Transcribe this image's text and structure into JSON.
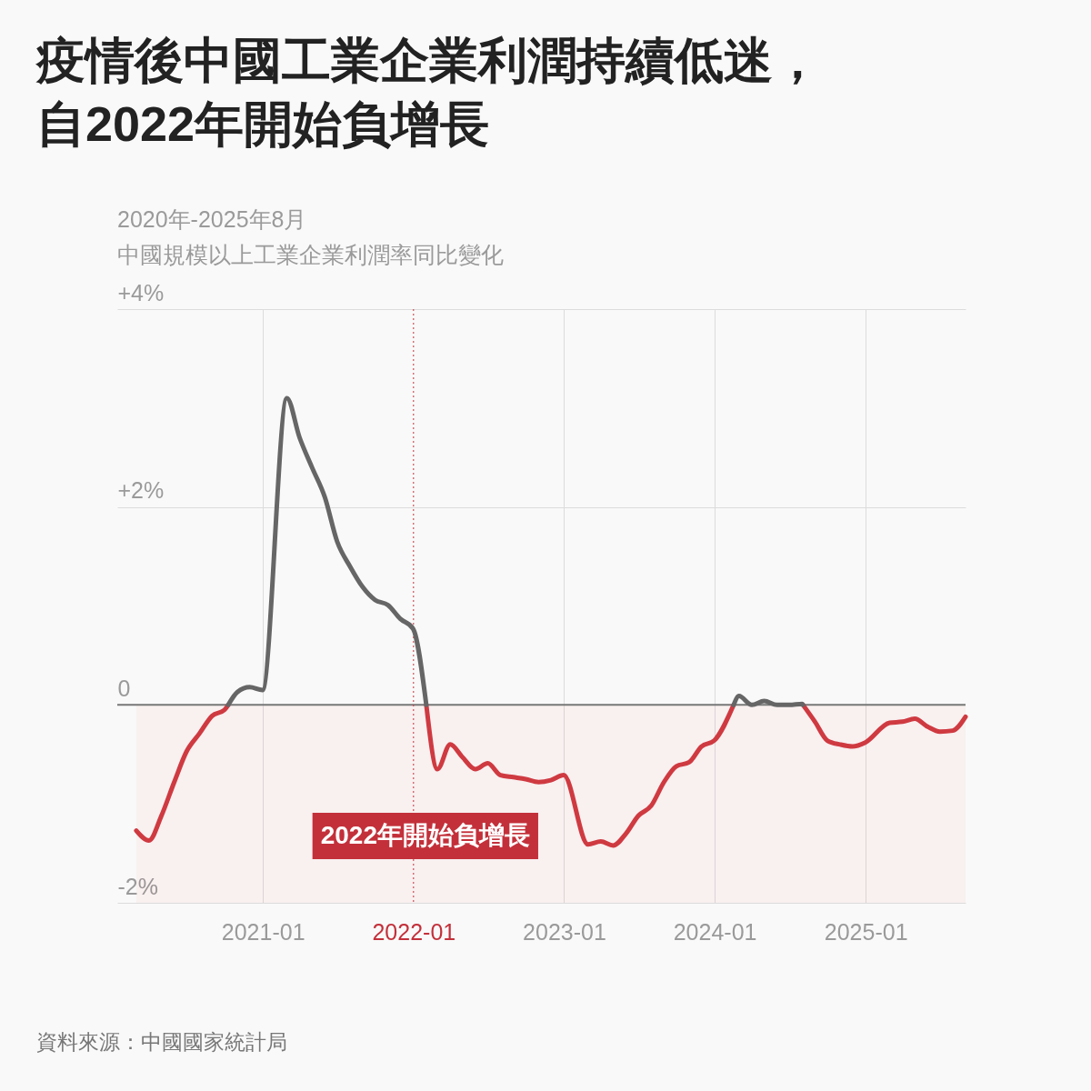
{
  "chart_data": {
    "type": "line",
    "title": "疫情後中國工業企業利潤持續低迷，自2022年開始負增長",
    "subtitle": "2020年-2025年8月",
    "ylabel": "中國規模以上工業企業利潤率同比變化",
    "annotations": [
      "資料來源：中國國家統計局"
    ],
    "x": [
      "2020-02-29",
      "2020-03-31",
      "2020-04-30",
      "2020-05-31",
      "2020-06-30",
      "2020-07-31",
      "2020-08-31",
      "2020-09-30",
      "2020-10-09",
      "2020-10-31",
      "2020-11-30",
      "2020-12-31",
      "2021-02-28",
      "2021-03-31",
      "2021-04-30",
      "2021-05-31",
      "2021-06-30",
      "2021-07-31",
      "2021-08-31",
      "2021-09-30",
      "2021-10-31",
      "2021-11-30",
      "2021-12-31",
      "2022-02-01",
      "2022-02-28",
      "2022-03-31",
      "2022-04-30",
      "2022-05-31",
      "2022-06-30",
      "2022-07-31",
      "2022-08-31",
      "2022-09-30",
      "2022-10-31",
      "2022-11-30",
      "2022-12-31",
      "2023-02-28",
      "2023-03-31",
      "2023-04-30",
      "2023-05-31",
      "2023-06-30",
      "2023-07-31",
      "2023-08-31",
      "2023-09-30",
      "2023-10-31",
      "2023-11-30",
      "2023-12-31",
      "2024-02-16",
      "2024-02-29",
      "2024-03-31",
      "2024-04-30",
      "2024-05-31",
      "2024-06-30",
      "2024-07-31",
      "2024-08-02",
      "2024-08-31",
      "2024-09-30",
      "2024-10-31",
      "2024-11-30",
      "2024-12-31",
      "2025-02-28",
      "2025-03-31",
      "2025-04-30",
      "2025-05-31",
      "2025-06-30",
      "2025-07-31",
      "2025-08-31"
    ],
    "series": [
      {
        "color": "#cf3a41",
        "values": [
          -1.27,
          -1.37,
          -1.12,
          -0.78,
          -0.47,
          -0.29,
          -0.11,
          -0.05,
          0,
          null,
          null,
          null,
          null,
          null,
          null,
          null,
          null,
          null,
          null,
          null,
          null,
          null,
          null,
          0,
          -0.65,
          -0.4,
          -0.53,
          -0.65,
          -0.59,
          -0.71,
          -0.73,
          -0.75,
          -0.78,
          -0.76,
          -0.71,
          -1.41,
          -1.38,
          -1.42,
          -1.3,
          -1.12,
          -1.02,
          -0.78,
          -0.62,
          -0.58,
          -0.42,
          -0.36,
          0,
          null,
          null,
          null,
          null,
          null,
          null,
          0,
          -0.17,
          -0.36,
          -0.4,
          -0.42,
          -0.38,
          -0.18,
          -0.17,
          -0.14,
          -0.22,
          -0.27,
          -0.26,
          -0.12
        ]
      },
      {
        "color": "#666666",
        "values": [
          null,
          null,
          null,
          null,
          null,
          null,
          null,
          null,
          0,
          0.13,
          0.18,
          0.15,
          3.1,
          2.7,
          2.4,
          2.1,
          1.65,
          1.4,
          1.19,
          1.06,
          1.01,
          0.87,
          0.77,
          0,
          null,
          null,
          null,
          null,
          null,
          null,
          null,
          null,
          null,
          null,
          null,
          null,
          null,
          null,
          null,
          null,
          null,
          null,
          null,
          null,
          null,
          null,
          0,
          0.09,
          0,
          0.04,
          0,
          0,
          0.01,
          0,
          null,
          null,
          null,
          null,
          null,
          null,
          null,
          null,
          null,
          null,
          null,
          null
        ]
      }
    ],
    "xlim": [
      "2020-01-14",
      "2025-08-31"
    ],
    "xticks": [
      "2021-01",
      "2022-01",
      "2023-01",
      "2024-01",
      "2025-01"
    ],
    "ylim": [
      -2,
      4
    ],
    "yticks": [
      {
        "value": -2,
        "label": "-2%"
      },
      0,
      {
        "value": 2,
        "label": "+2%"
      },
      {
        "value": 4,
        "label": "+4%"
      }
    ],
    "ref_lines": [
      {
        "axis": "y",
        "value": 0,
        "color": "#777777"
      },
      {
        "axis": "x",
        "value": "2022-01",
        "label": "2022年開始負增長",
        "color": "#c3303a",
        "line_style": "dotted"
      }
    ],
    "bands": [
      {
        "axis": "y",
        "from": -2,
        "to": 0,
        "color": "#fff6f6"
      }
    ],
    "grid": true,
    "line_style": "solid"
  }
}
